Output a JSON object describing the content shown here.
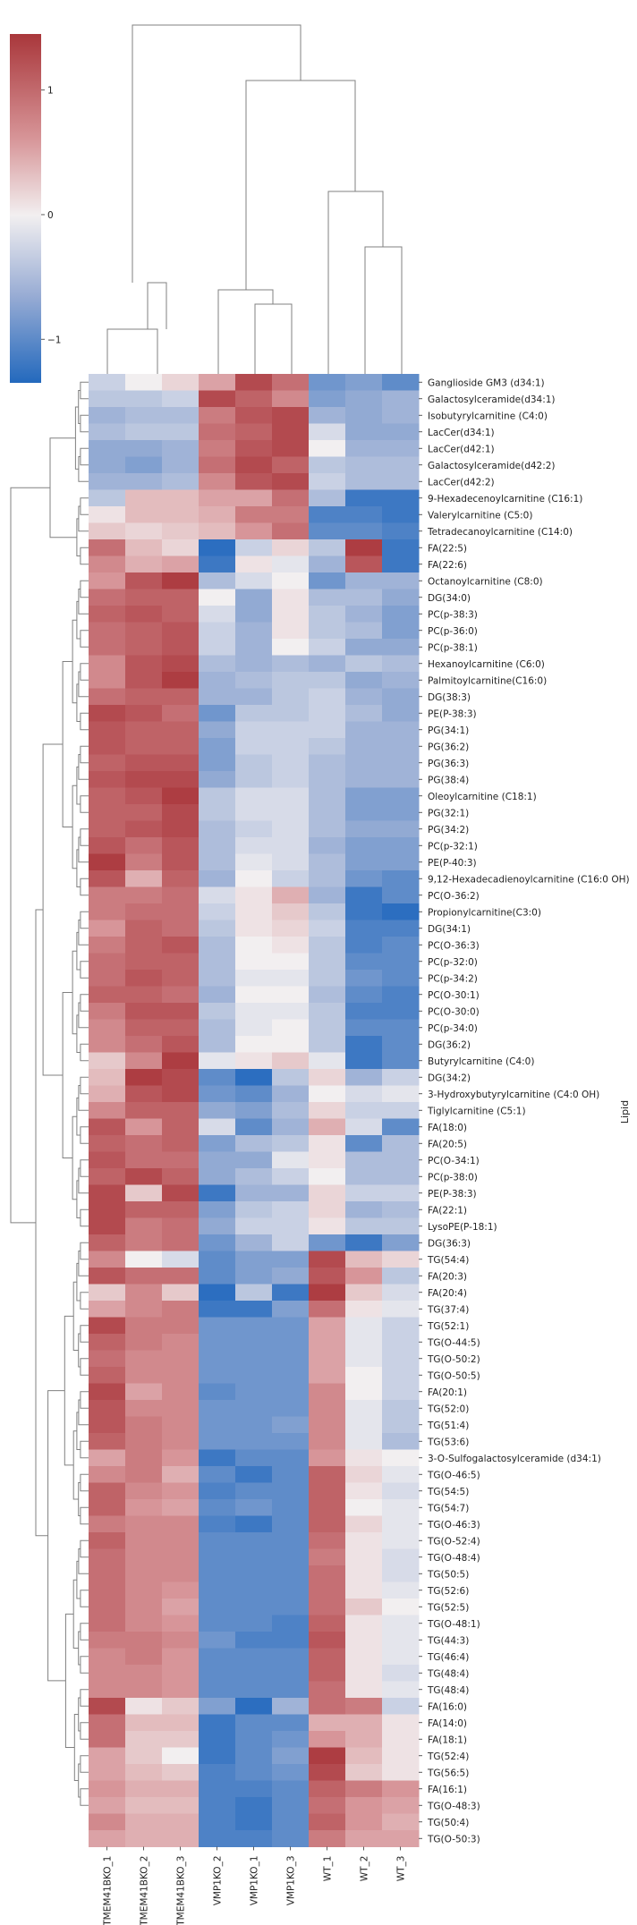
{
  "chart_data": {
    "type": "heatmap",
    "title": "",
    "ylabel": "Lipid",
    "colorbar": {
      "ticks": [
        1,
        0,
        -1
      ],
      "tick_labels": [
        "1",
        "0",
        "−1"
      ],
      "vmin": -1.35,
      "vmax": 1.45,
      "colormap": "vlag"
    },
    "columns": [
      "TMEM41BKO_1",
      "TMEM41BKO_2",
      "TMEM41BKO_3",
      "VMP1KO_2",
      "VMP1KO_1",
      "VMP1KO_3",
      "WT_1",
      "WT_2",
      "WT_3"
    ],
    "rows": [
      "Ganglioside GM3 (d34:1)",
      "Galactosylceramide(d34:1)",
      "Isobutyrylcarnitine (C4:0)",
      "LacCer(d34:1)",
      "LacCer(d42:1)",
      "Galactosylceramide(d42:2)",
      "LacCer(d42:2)",
      "9-Hexadecenoylcarnitine (C16:1)",
      "Valerylcarnitine (C5:0)",
      "Tetradecanoylcarnitine (C14:0)",
      "FA(22:5)",
      "FA(22:6)",
      "Octanoylcarnitine (C8:0)",
      "DG(34:0)",
      "PC(p-38:3)",
      "PC(p-36:0)",
      "PC(p-38:1)",
      "Hexanoylcarnitine  (C6:0)",
      "Palmitoylcarnitine(C16:0)",
      "DG(38:3)",
      "PE(P-38:3)",
      "PG(34:1)",
      "PG(36:2)",
      "PG(36:3)",
      "PG(38:4)",
      "Oleoylcarnitine (C18:1)",
      "PG(32:1)",
      "PG(34:2)",
      "PC(p-32:1)",
      "PE(P-40:3)",
      "9,12-Hexadecadienoylcarnitine (C16:0 OH)",
      "PC(O-36:2)",
      "Propionylcarnitine(C3:0)",
      "DG(34:1)",
      "PC(O-36:3)",
      "PC(p-32:0)",
      "PC(p-34:2)",
      "PC(O-30:1)",
      "PC(O-30:0)",
      "PC(p-34:0)",
      "DG(36:2)",
      "Butyrylcarnitine (C4:0)",
      "DG(34:2)",
      "3-Hydroxybutyrylcarnitine (C4:0 OH)",
      "Tiglylcarnitine (C5:1)",
      "FA(18:0)",
      "FA(20:5)",
      "PC(O-34:1)",
      "PC(p-38:0)",
      "PE(P-38:3)",
      "FA(22:1)",
      "LysoPE(P-18:1)",
      "DG(36:3)",
      "TG(54:4)",
      "FA(20:3)",
      "FA(20:4)",
      "TG(37:4)",
      "TG(52:1)",
      "TG(O-44:5)",
      "TG(O-50:2)",
      "TG(O-50:5)",
      "FA(20:1)",
      "TG(52:0)",
      "TG(51:4)",
      "TG(53:6)",
      "3-O-Sulfogalactosylceramide (d34:1)",
      "TG(O-46:5)",
      "TG(54:5)",
      "TG(54:7)",
      "TG(O-46:3)",
      "TG(O-52:4)",
      "TG(O-48:4)",
      "TG(50:5)",
      "TG(52:6)",
      "TG(52:5)",
      "TG(O-48:1)",
      "TG(44:3)",
      "TG(46:4)",
      "TG(48:4)",
      "TG(48:4)",
      "FA(16:0)",
      "FA(14:0)",
      "FA(18:1)",
      "TG(52:4)",
      "TG(56:5)",
      "FA(16:1)",
      "TG(O-48:3)",
      "TG(50:4)",
      "TG(O-50:3)"
    ],
    "values": [
      [
        -0.3,
        0.0,
        0.2,
        0.6,
        1.3,
        1.0,
        -0.9,
        -0.8,
        -1.0
      ],
      [
        -0.4,
        -0.4,
        -0.3,
        1.3,
        1.1,
        0.8,
        -0.8,
        -0.7,
        -0.6
      ],
      [
        -0.6,
        -0.5,
        -0.5,
        0.9,
        1.2,
        1.3,
        -0.6,
        -0.7,
        -0.6
      ],
      [
        -0.5,
        -0.4,
        -0.4,
        1.0,
        1.1,
        1.3,
        -0.2,
        -0.7,
        -0.7
      ],
      [
        -0.7,
        -0.7,
        -0.6,
        0.9,
        1.2,
        1.3,
        0.0,
        -0.6,
        -0.6
      ],
      [
        -0.7,
        -0.8,
        -0.6,
        1.0,
        1.3,
        1.1,
        -0.4,
        -0.5,
        -0.5
      ],
      [
        -0.6,
        -0.6,
        -0.5,
        0.8,
        1.2,
        1.3,
        -0.3,
        -0.5,
        -0.5
      ],
      [
        -0.4,
        0.4,
        0.4,
        0.6,
        0.6,
        1.0,
        -0.5,
        -1.2,
        -1.2
      ],
      [
        0.1,
        0.4,
        0.4,
        0.5,
        0.9,
        0.9,
        -1.1,
        -1.1,
        -1.2
      ],
      [
        0.3,
        0.2,
        0.3,
        0.4,
        0.7,
        1.0,
        -1.0,
        -1.0,
        -1.1
      ],
      [
        1.0,
        0.4,
        0.2,
        -1.3,
        -0.3,
        0.2,
        -0.4,
        1.4,
        -1.2
      ],
      [
        0.8,
        0.5,
        0.6,
        -1.2,
        0.1,
        -0.1,
        -0.6,
        1.2,
        -1.2
      ],
      [
        0.7,
        1.2,
        1.4,
        -0.5,
        -0.2,
        0.0,
        -0.9,
        -0.6,
        -0.6
      ],
      [
        1.0,
        1.1,
        1.1,
        0.0,
        -0.7,
        0.1,
        -0.5,
        -0.5,
        -0.7
      ],
      [
        1.1,
        1.2,
        1.1,
        -0.2,
        -0.7,
        0.1,
        -0.4,
        -0.6,
        -0.8
      ],
      [
        1.0,
        1.1,
        1.2,
        -0.3,
        -0.6,
        0.1,
        -0.4,
        -0.5,
        -0.8
      ],
      [
        1.0,
        1.1,
        1.2,
        -0.3,
        -0.6,
        0.0,
        -0.3,
        -0.7,
        -0.7
      ],
      [
        0.8,
        1.2,
        1.3,
        -0.5,
        -0.6,
        -0.5,
        -0.6,
        -0.4,
        -0.5
      ],
      [
        0.8,
        1.2,
        1.4,
        -0.6,
        -0.5,
        -0.4,
        -0.4,
        -0.7,
        -0.6
      ],
      [
        1.0,
        1.1,
        1.1,
        -0.6,
        -0.6,
        -0.4,
        -0.3,
        -0.6,
        -0.7
      ],
      [
        1.3,
        1.2,
        1.0,
        -0.9,
        -0.4,
        -0.4,
        -0.3,
        -0.5,
        -0.7
      ],
      [
        1.2,
        1.1,
        1.1,
        -0.7,
        -0.3,
        -0.3,
        -0.3,
        -0.6,
        -0.6
      ],
      [
        1.2,
        1.1,
        1.1,
        -0.8,
        -0.3,
        -0.3,
        -0.4,
        -0.6,
        -0.6
      ],
      [
        1.1,
        1.2,
        1.2,
        -0.8,
        -0.4,
        -0.3,
        -0.5,
        -0.6,
        -0.6
      ],
      [
        1.2,
        1.3,
        1.3,
        -0.7,
        -0.4,
        -0.3,
        -0.5,
        -0.6,
        -0.6
      ],
      [
        1.1,
        1.2,
        1.4,
        -0.4,
        -0.2,
        -0.2,
        -0.5,
        -0.8,
        -0.8
      ],
      [
        1.1,
        1.1,
        1.3,
        -0.4,
        -0.2,
        -0.2,
        -0.5,
        -0.8,
        -0.8
      ],
      [
        1.1,
        1.2,
        1.3,
        -0.5,
        -0.3,
        -0.2,
        -0.5,
        -0.7,
        -0.7
      ],
      [
        1.2,
        1.0,
        1.2,
        -0.5,
        -0.2,
        -0.2,
        -0.6,
        -0.8,
        -0.8
      ],
      [
        1.4,
        0.9,
        1.2,
        -0.5,
        -0.1,
        -0.2,
        -0.5,
        -0.8,
        -0.8
      ],
      [
        1.2,
        0.5,
        1.1,
        -0.6,
        0.0,
        -0.3,
        -0.5,
        -0.9,
        -1.0
      ],
      [
        0.9,
        0.9,
        1.0,
        -0.2,
        0.1,
        0.5,
        -0.6,
        -1.2,
        -1.0
      ],
      [
        0.9,
        1.0,
        1.0,
        -0.3,
        0.1,
        0.3,
        -0.4,
        -1.2,
        -1.3
      ],
      [
        0.7,
        1.1,
        1.0,
        -0.4,
        0.1,
        0.2,
        -0.3,
        -1.1,
        -1.1
      ],
      [
        0.9,
        1.1,
        1.2,
        -0.5,
        0.0,
        0.1,
        -0.4,
        -1.1,
        -1.0
      ],
      [
        1.0,
        1.1,
        1.1,
        -0.5,
        0.0,
        0.0,
        -0.4,
        -1.0,
        -1.0
      ],
      [
        1.0,
        1.2,
        1.1,
        -0.5,
        -0.1,
        -0.1,
        -0.4,
        -0.9,
        -1.0
      ],
      [
        1.1,
        1.1,
        1.0,
        -0.6,
        0.0,
        0.0,
        -0.5,
        -1.0,
        -1.1
      ],
      [
        0.9,
        1.2,
        1.2,
        -0.4,
        -0.1,
        -0.1,
        -0.4,
        -1.1,
        -1.1
      ],
      [
        0.8,
        1.1,
        1.1,
        -0.5,
        -0.1,
        0.0,
        -0.4,
        -1.0,
        -1.0
      ],
      [
        0.8,
        1.0,
        1.2,
        -0.5,
        0.0,
        0.0,
        -0.4,
        -1.2,
        -1.0
      ],
      [
        0.3,
        0.8,
        1.4,
        -0.1,
        0.1,
        0.3,
        -0.1,
        -1.2,
        -1.0
      ],
      [
        0.4,
        1.4,
        1.3,
        -1.0,
        -1.3,
        -0.4,
        0.2,
        -0.6,
        -0.3
      ],
      [
        0.5,
        1.2,
        1.3,
        -0.9,
        -1.0,
        -0.6,
        0.0,
        -0.2,
        -0.1
      ],
      [
        0.8,
        1.1,
        1.1,
        -0.7,
        -0.8,
        -0.5,
        0.2,
        -0.3,
        -0.3
      ],
      [
        1.2,
        0.7,
        1.1,
        -0.2,
        -1.0,
        -0.6,
        0.5,
        -0.2,
        -1.0
      ],
      [
        1.1,
        1.0,
        1.1,
        -0.8,
        -0.5,
        -0.4,
        0.1,
        -1.0,
        -0.5
      ],
      [
        1.2,
        1.0,
        1.0,
        -0.7,
        -0.7,
        -0.1,
        0.1,
        -0.5,
        -0.5
      ],
      [
        1.1,
        1.3,
        1.1,
        -0.7,
        -0.5,
        -0.3,
        0.0,
        -0.5,
        -0.5
      ],
      [
        1.3,
        0.3,
        1.3,
        -1.2,
        -0.6,
        -0.6,
        0.2,
        -0.3,
        -0.3
      ],
      [
        1.3,
        1.1,
        1.1,
        -0.8,
        -0.4,
        -0.3,
        0.2,
        -0.6,
        -0.5
      ],
      [
        1.3,
        0.9,
        1.0,
        -0.7,
        -0.3,
        -0.3,
        0.1,
        -0.4,
        -0.4
      ],
      [
        1.1,
        0.9,
        1.0,
        -0.9,
        -0.6,
        -0.3,
        -0.9,
        -1.2,
        -0.8
      ],
      [
        0.8,
        0.0,
        -0.2,
        -1.0,
        -0.8,
        -0.8,
        1.3,
        0.4,
        0.2
      ],
      [
        1.2,
        1.0,
        1.0,
        -1.0,
        -0.8,
        -0.7,
        1.2,
        0.7,
        -0.4
      ],
      [
        0.3,
        0.8,
        0.3,
        -1.3,
        -0.4,
        -1.2,
        1.4,
        0.3,
        -0.2
      ],
      [
        0.6,
        0.8,
        0.9,
        -1.2,
        -1.2,
        -0.8,
        1.0,
        0.1,
        -0.1
      ],
      [
        1.3,
        0.9,
        0.9,
        -0.9,
        -0.9,
        -0.9,
        0.6,
        -0.1,
        -0.3
      ],
      [
        1.1,
        0.9,
        0.8,
        -0.9,
        -0.9,
        -0.9,
        0.6,
        -0.1,
        -0.3
      ],
      [
        1.0,
        0.8,
        0.8,
        -0.9,
        -0.9,
        -0.9,
        0.6,
        -0.1,
        -0.3
      ],
      [
        1.1,
        0.8,
        0.8,
        -0.9,
        -0.9,
        -0.9,
        0.6,
        0.0,
        -0.3
      ],
      [
        1.3,
        0.6,
        0.8,
        -1.0,
        -0.9,
        -0.9,
        0.8,
        0.0,
        -0.3
      ],
      [
        1.2,
        0.8,
        0.8,
        -0.9,
        -0.9,
        -0.9,
        0.8,
        -0.1,
        -0.4
      ],
      [
        1.2,
        0.9,
        0.8,
        -0.9,
        -0.9,
        -0.8,
        0.8,
        -0.1,
        -0.4
      ],
      [
        1.1,
        0.9,
        0.8,
        -0.9,
        -0.9,
        -0.9,
        0.8,
        -0.1,
        -0.5
      ],
      [
        0.6,
        0.9,
        0.7,
        -1.2,
        -1.0,
        -1.0,
        0.7,
        0.1,
        0.0
      ],
      [
        0.8,
        0.9,
        0.5,
        -1.0,
        -1.2,
        -1.0,
        1.1,
        0.2,
        -0.1
      ],
      [
        1.1,
        0.8,
        0.7,
        -1.1,
        -1.0,
        -1.0,
        1.1,
        0.1,
        -0.2
      ],
      [
        1.1,
        0.7,
        0.6,
        -1.0,
        -0.9,
        -1.0,
        1.1,
        0.0,
        -0.1
      ],
      [
        0.9,
        0.8,
        0.8,
        -1.1,
        -1.2,
        -1.0,
        1.1,
        0.2,
        -0.1
      ],
      [
        1.1,
        0.8,
        0.8,
        -1.0,
        -1.0,
        -1.0,
        1.0,
        0.1,
        -0.1
      ],
      [
        1.0,
        0.8,
        0.8,
        -1.0,
        -1.0,
        -1.0,
        0.9,
        0.1,
        -0.2
      ],
      [
        1.0,
        0.8,
        0.8,
        -1.0,
        -1.0,
        -1.0,
        1.0,
        0.1,
        -0.2
      ],
      [
        1.0,
        0.8,
        0.7,
        -1.0,
        -1.0,
        -1.0,
        1.0,
        0.1,
        -0.1
      ],
      [
        1.0,
        0.8,
        0.6,
        -1.0,
        -1.0,
        -1.0,
        1.0,
        0.3,
        0.0
      ],
      [
        1.0,
        0.8,
        0.7,
        -1.0,
        -1.0,
        -1.1,
        1.1,
        0.1,
        -0.1
      ],
      [
        0.9,
        0.9,
        0.8,
        -0.9,
        -1.1,
        -1.1,
        1.2,
        0.1,
        -0.1
      ],
      [
        0.8,
        0.9,
        0.7,
        -1.0,
        -1.0,
        -1.0,
        1.1,
        0.1,
        -0.1
      ],
      [
        0.8,
        0.8,
        0.7,
        -1.0,
        -1.0,
        -1.0,
        1.1,
        0.1,
        -0.2
      ],
      [
        0.8,
        0.8,
        0.7,
        -1.0,
        -1.0,
        -1.0,
        1.0,
        0.1,
        -0.1
      ],
      [
        1.3,
        0.1,
        0.3,
        -0.8,
        -1.3,
        -0.6,
        1.0,
        0.9,
        -0.3
      ],
      [
        1.0,
        0.4,
        0.4,
        -1.2,
        -1.0,
        -1.0,
        0.5,
        0.5,
        0.1
      ],
      [
        1.0,
        0.3,
        0.3,
        -1.2,
        -1.0,
        -0.9,
        0.7,
        0.5,
        0.1
      ],
      [
        0.6,
        0.3,
        0.0,
        -1.2,
        -1.0,
        -0.8,
        1.4,
        0.4,
        0.1
      ],
      [
        0.6,
        0.4,
        0.3,
        -1.1,
        -1.0,
        -0.9,
        1.3,
        0.3,
        0.1
      ],
      [
        0.7,
        0.5,
        0.5,
        -1.1,
        -1.1,
        -1.0,
        1.1,
        0.9,
        0.7
      ],
      [
        0.6,
        0.4,
        0.4,
        -1.1,
        -1.2,
        -1.0,
        1.0,
        0.7,
        0.6
      ],
      [
        0.8,
        0.5,
        0.5,
        -1.1,
        -1.2,
        -1.0,
        1.1,
        0.7,
        0.5
      ],
      [
        0.6,
        0.5,
        0.5,
        -1.1,
        -1.1,
        -1.0,
        0.9,
        0.6,
        0.6
      ]
    ]
  }
}
